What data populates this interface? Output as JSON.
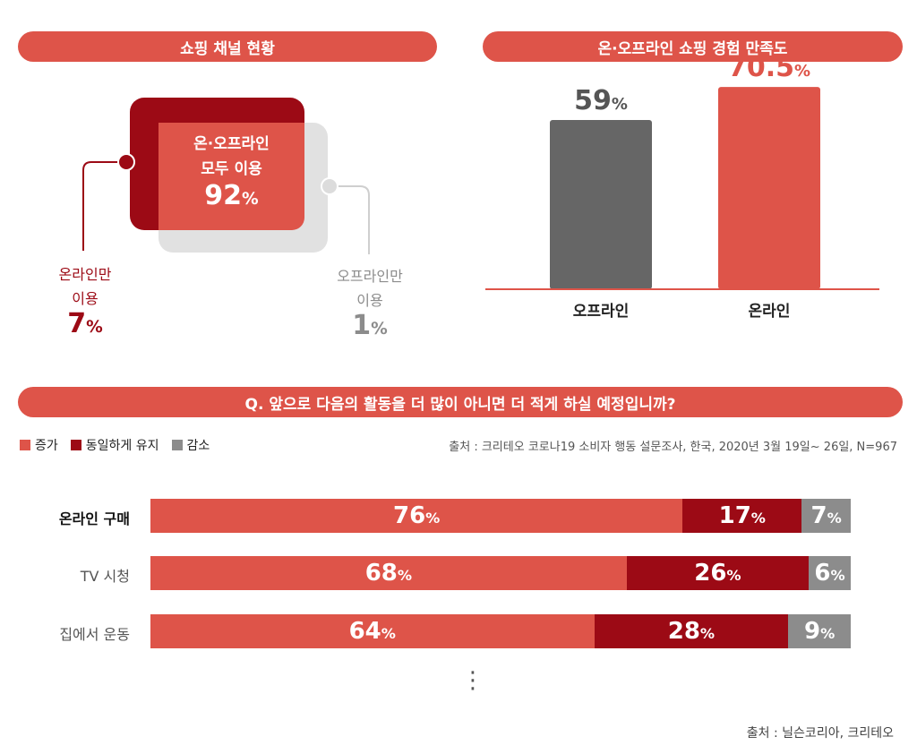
{
  "colors": {
    "red": "#de5449",
    "dark_red": "#9c0a15",
    "gray": "#666666",
    "light_gray": "#dcdcdc",
    "mid_gray": "#8c8c8c"
  },
  "channel": {
    "title": "쇼핑 채널 현황",
    "both": {
      "label_line1": "온·오프라인",
      "label_line2": "모두 이용",
      "value": "92",
      "unit": "%"
    },
    "online_only": {
      "label_line1": "온라인만",
      "label_line2": "이용",
      "value": "7",
      "unit": "%"
    },
    "offline_only": {
      "label_line1": "오프라인만",
      "label_line2": "이용",
      "value": "1",
      "unit": "%"
    }
  },
  "satisfaction": {
    "title": "온·오프라인 쇼핑 경험 만족도",
    "unit": "%"
  },
  "survey": {
    "question": "Q. 앞으로 다음의 활동을 더 많이 아니면 더 적게 하실 예정입니까?",
    "legend": [
      {
        "label": "증가",
        "color": "#de5449"
      },
      {
        "label": "동일하게 유지",
        "color": "#9c0a15"
      },
      {
        "label": "감소",
        "color": "#8c8c8c"
      }
    ],
    "source": "출처 : 크리테오 코로나19 소비자 행동 설문조사, 한국, 2020년 3월 19일~ 26일, N=967",
    "unit": "%",
    "ellipsis": "⋮"
  },
  "footer_source": "출처 : 닐슨코리아, 크리테오",
  "chart_data": [
    {
      "type": "bar",
      "title": "온·오프라인 쇼핑 경험 만족도",
      "categories": [
        "오프라인",
        "온라인"
      ],
      "values": [
        59,
        70.5
      ],
      "colors": [
        "#666666",
        "#de5449"
      ],
      "ylim": [
        0,
        80
      ]
    },
    {
      "type": "bar",
      "stacked": true,
      "orientation": "horizontal",
      "title": "Q. 앞으로 다음의 활동을 더 많이 아니면 더 적게 하실 예정입니까?",
      "categories": [
        "온라인 구매",
        "TV 시청",
        "집에서 운동"
      ],
      "series": [
        {
          "name": "증가",
          "values": [
            76,
            68,
            64
          ],
          "color": "#de5449"
        },
        {
          "name": "동일하게 유지",
          "values": [
            17,
            26,
            28
          ],
          "color": "#9c0a15"
        },
        {
          "name": "감소",
          "values": [
            7,
            6,
            9
          ],
          "color": "#8c8c8c"
        }
      ]
    }
  ]
}
